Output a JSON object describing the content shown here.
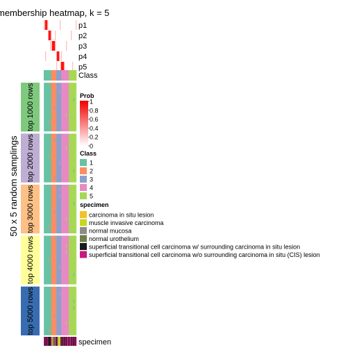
{
  "chart_data": {
    "type": "heatmap",
    "title": "membership heatmap, k = 5",
    "ylabel": "50 x 5 random samplings",
    "prob_rows": [
      "p1",
      "p2",
      "p3",
      "p4",
      "p5"
    ],
    "class_row_label": "Class",
    "specimen_row_label": "specimen",
    "row_groups": [
      "top 1000 rows",
      "top 2000 rows",
      "top 3000 rows",
      "top 4000 rows",
      "top 5000 rows"
    ],
    "group_colors": [
      "#7FC97F",
      "#BEAED4",
      "#FDC086",
      "#FFFF99",
      "#386CB0"
    ],
    "class_levels": [
      "1",
      "2",
      "3",
      "4",
      "5"
    ],
    "class_colors": [
      "#66C2A5",
      "#FC8D62",
      "#8DA0CB",
      "#E78AC3",
      "#A6D854"
    ],
    "column_class_widths": [
      3,
      2,
      2,
      3,
      3
    ],
    "prob_legend": {
      "title": "Prob",
      "ticks": [
        "1",
        "0.8",
        "0.6",
        "0.4",
        "0.2",
        "0"
      ],
      "low_color": "#ffffff",
      "high_color": "#EF0000"
    },
    "class_legend_title": "Class",
    "specimen_legend": {
      "title": "specimen",
      "items": [
        {
          "label": "carcinoma in situ lesion",
          "color": "#F2C12E"
        },
        {
          "label": "muscle invasive carcinoma",
          "color": "#C8D820"
        },
        {
          "label": "normal mucosa",
          "color": "#8C8C8C"
        },
        {
          "label": "normal urothelium",
          "color": "#6F7F4A"
        },
        {
          "label": "superficial transitional cell carcinoma w/ surrounding carcinoma in situ lesion",
          "color": "#1A1A1A"
        },
        {
          "label": "superficial transitional cell carcinoma w/o surrounding carcinoma in situ (CIS) lesion",
          "color": "#C51B7D"
        }
      ]
    },
    "specimen_column_codes": [
      5,
      4,
      5,
      4,
      5,
      4,
      4,
      4,
      5,
      0,
      3,
      3,
      5,
      3,
      4,
      5,
      1,
      1,
      1,
      4,
      5,
      4,
      5,
      4,
      5,
      4,
      5,
      5,
      4,
      5,
      5,
      4,
      5,
      4,
      5,
      4,
      5
    ]
  }
}
